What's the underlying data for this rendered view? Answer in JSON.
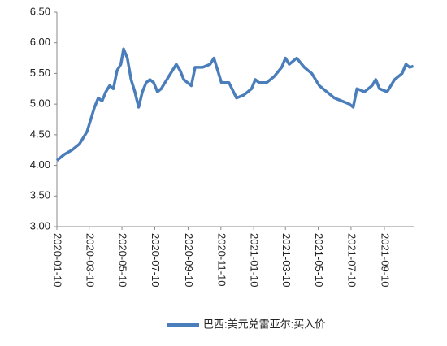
{
  "chart_data": {
    "type": "line",
    "x": [
      "2020-01-10",
      "2020-01-24",
      "2020-02-07",
      "2020-02-21",
      "2020-03-06",
      "2020-03-13",
      "2020-03-20",
      "2020-03-27",
      "2020-04-03",
      "2020-04-10",
      "2020-04-17",
      "2020-04-24",
      "2020-05-01",
      "2020-05-08",
      "2020-05-13",
      "2020-05-20",
      "2020-05-27",
      "2020-06-03",
      "2020-06-10",
      "2020-06-17",
      "2020-06-24",
      "2020-07-01",
      "2020-07-08",
      "2020-07-15",
      "2020-07-22",
      "2020-07-29",
      "2020-08-05",
      "2020-08-12",
      "2020-08-19",
      "2020-08-26",
      "2020-09-02",
      "2020-09-16",
      "2020-09-23",
      "2020-10-07",
      "2020-10-21",
      "2020-10-28",
      "2020-11-04",
      "2020-11-11",
      "2020-11-25",
      "2020-12-09",
      "2020-12-23",
      "2021-01-06",
      "2021-01-13",
      "2021-01-20",
      "2021-02-03",
      "2021-02-17",
      "2021-03-03",
      "2021-03-10",
      "2021-03-17",
      "2021-03-24",
      "2021-03-31",
      "2021-04-14",
      "2021-04-28",
      "2021-05-12",
      "2021-05-26",
      "2021-06-09",
      "2021-06-23",
      "2021-07-07",
      "2021-07-14",
      "2021-07-21",
      "2021-08-04",
      "2021-08-18",
      "2021-08-25",
      "2021-09-01",
      "2021-09-15",
      "2021-09-29",
      "2021-10-13",
      "2021-10-20",
      "2021-10-27",
      "2021-11-03"
    ],
    "series": [
      {
        "name": "巴西:美元兑雷亚尔:买入价",
        "color": "#4a7ebb",
        "values": [
          4.08,
          4.18,
          4.25,
          4.35,
          4.55,
          4.75,
          4.95,
          5.1,
          5.05,
          5.2,
          5.3,
          5.25,
          5.55,
          5.65,
          5.9,
          5.75,
          5.4,
          5.2,
          4.95,
          5.2,
          5.35,
          5.4,
          5.35,
          5.2,
          5.25,
          5.35,
          5.45,
          5.55,
          5.65,
          5.55,
          5.4,
          5.3,
          5.6,
          5.6,
          5.65,
          5.75,
          5.55,
          5.35,
          5.35,
          5.1,
          5.15,
          5.25,
          5.4,
          5.35,
          5.35,
          5.45,
          5.6,
          5.75,
          5.65,
          5.7,
          5.75,
          5.6,
          5.5,
          5.3,
          5.2,
          5.1,
          5.05,
          5.0,
          4.95,
          5.25,
          5.2,
          5.3,
          5.4,
          5.25,
          5.2,
          5.4,
          5.5,
          5.65,
          5.6,
          5.62
        ]
      }
    ],
    "xlim": [
      "2020-01-10",
      "2021-11-05"
    ],
    "xticks": [
      "2020-01-10",
      "2020-03-10",
      "2020-05-10",
      "2020-07-10",
      "2020-09-10",
      "2020-11-10",
      "2021-01-10",
      "2021-03-10",
      "2021-05-10",
      "2021-07-10",
      "2021-09-10"
    ],
    "ylim": [
      3,
      6.5
    ],
    "yticks": [
      {
        "value": 3,
        "label": "3.00"
      },
      {
        "value": 3.5,
        "label": "3.50"
      },
      {
        "value": 4,
        "label": "4.00"
      },
      {
        "value": 4.5,
        "label": "4.50"
      },
      {
        "value": 5,
        "label": "5.00"
      },
      {
        "value": 5.5,
        "label": "5.50"
      },
      {
        "value": 6,
        "label": "6.00"
      },
      {
        "value": 6.5,
        "label": "6.50"
      }
    ],
    "legend": "bottom"
  }
}
